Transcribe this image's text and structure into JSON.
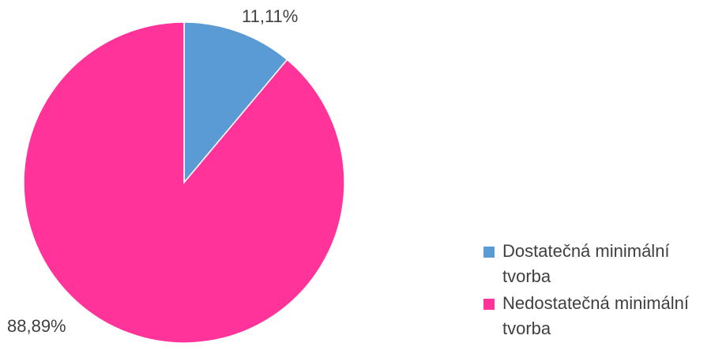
{
  "chart_data": {
    "type": "pie",
    "categories": [
      "Dostatečná minimální tvorba",
      "Nedostatečná minimální tvorba"
    ],
    "values": [
      11.11,
      88.89
    ],
    "data_labels": [
      "11,11%",
      "88,89%"
    ],
    "colors": [
      "#5B9BD5",
      "#FF3399"
    ],
    "start_angle_deg": 0,
    "direction": "clockwise",
    "legend": {
      "position": "right",
      "items": [
        {
          "label": "Dostatečná minimální tvorba",
          "color": "#5B9BD5"
        },
        {
          "label": "Nedostatečná minimální tvorba",
          "color": "#FF3399"
        }
      ]
    }
  }
}
